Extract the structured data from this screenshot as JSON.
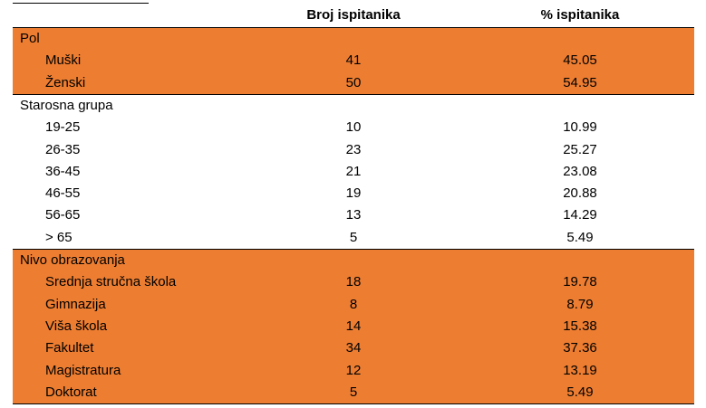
{
  "table": {
    "header": [
      "Broj ispitanika",
      "% ispitanika"
    ],
    "sections": [
      {
        "title": "Pol",
        "highlight": true,
        "rows": [
          [
            "Muški",
            41,
            45.05
          ],
          [
            "Ženski",
            50,
            54.95
          ]
        ]
      },
      {
        "title": "Starosna grupa",
        "highlight": false,
        "rows": [
          [
            "19-25",
            10,
            10.99
          ],
          [
            "26-35",
            23,
            25.27
          ],
          [
            "36-45",
            21,
            23.08
          ],
          [
            "46-55",
            19,
            20.88
          ],
          [
            "56-65",
            13,
            14.29
          ],
          [
            "> 65",
            5,
            5.49
          ]
        ]
      },
      {
        "title": "Nivo obrazovanja",
        "highlight": true,
        "rows": [
          [
            "Srednja stručna škola",
            18,
            19.78
          ],
          [
            "Gimnazija",
            8,
            8.79
          ],
          [
            "Viša škola",
            14,
            15.38
          ],
          [
            "Fakultet",
            34,
            37.36
          ],
          [
            "Magistratura",
            12,
            13.19
          ],
          [
            "Doktorat",
            5,
            5.49
          ]
        ]
      }
    ]
  }
}
